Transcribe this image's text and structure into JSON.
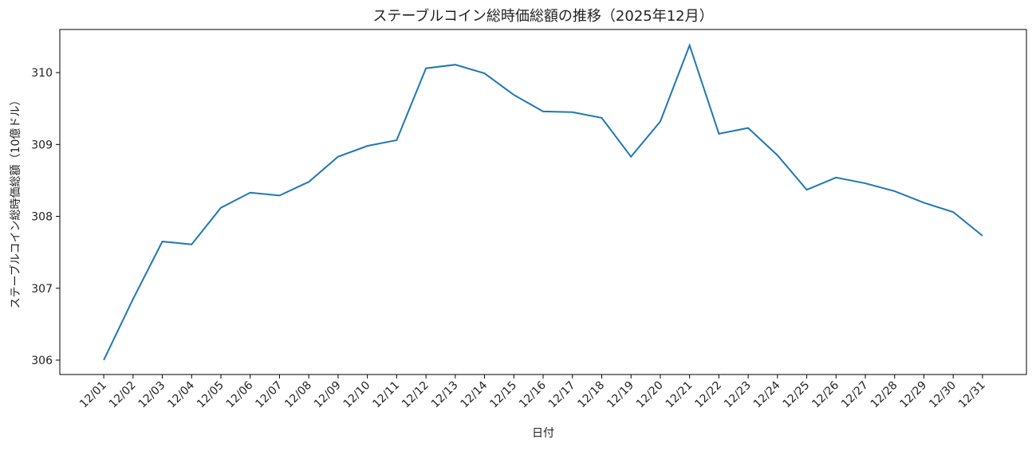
{
  "chart_data": {
    "type": "line",
    "title": "ステーブルコイン総時価総額の推移（2025年12月）",
    "x_label": "日付",
    "y_label": "ステーブルコイン総時価総額（10億ドル）",
    "categories": [
      "12/01",
      "12/02",
      "12/03",
      "12/04",
      "12/05",
      "12/06",
      "12/07",
      "12/08",
      "12/09",
      "12/10",
      "12/11",
      "12/12",
      "12/13",
      "12/14",
      "12/15",
      "12/16",
      "12/17",
      "12/18",
      "12/19",
      "12/20",
      "12/21",
      "12/22",
      "12/23",
      "12/24",
      "12/25",
      "12/26",
      "12/27",
      "12/28",
      "12/29",
      "12/30",
      "12/31"
    ],
    "series": [
      {
        "name": "ステーブルコイン総時価総額",
        "color": "#1f77b4",
        "values": [
          306.0,
          306.85,
          307.65,
          307.61,
          308.12,
          308.33,
          308.29,
          308.48,
          308.83,
          308.98,
          309.06,
          310.06,
          310.11,
          309.99,
          309.69,
          309.46,
          309.45,
          309.37,
          308.83,
          309.32,
          310.38,
          309.15,
          309.23,
          308.85,
          308.37,
          308.54,
          308.46,
          308.35,
          308.19,
          308.06,
          307.73
        ]
      }
    ],
    "ylim": [
      305.8,
      310.6
    ],
    "yticks": [
      306,
      307,
      308,
      309,
      310
    ],
    "grid": false
  }
}
